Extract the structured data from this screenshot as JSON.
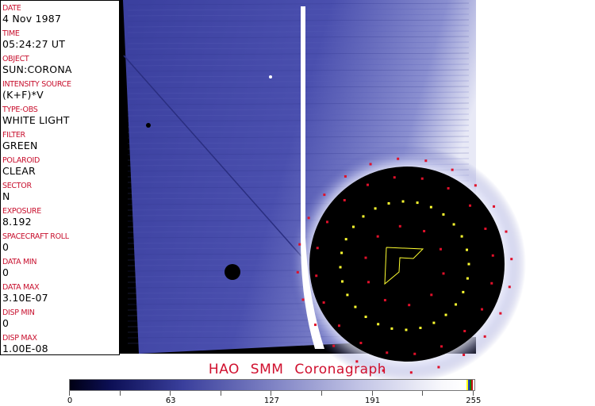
{
  "header_fields": [
    {
      "label": "DATE",
      "value": "4 Nov 1987"
    },
    {
      "label": "TIME",
      "value": "05:24:27 UT"
    },
    {
      "label": "OBJECT",
      "value": "SUN:CORONA"
    },
    {
      "label": "INTENSITY SOURCE",
      "value": "(K+F)*V"
    },
    {
      "label": "TYPE-OBS",
      "value": "WHITE LIGHT"
    },
    {
      "label": "FILTER",
      "value": "GREEN"
    },
    {
      "label": "POLAROID",
      "value": "CLEAR"
    },
    {
      "label": "SECTOR",
      "value": "N"
    },
    {
      "label": "EXPOSURE",
      "value": "8.192"
    },
    {
      "label": "SPACECRAFT ROLL",
      "value": "0"
    },
    {
      "label": "DATA MIN",
      "value": "0"
    },
    {
      "label": "DATA MAX",
      "value": "3.10E-07"
    },
    {
      "label": "DISP MIN",
      "value": "0"
    },
    {
      "label": "DISP MAX",
      "value": "1.00E-08"
    }
  ],
  "title": "HAO  SMM  Coronagraph",
  "colorbar": {
    "ticks": [
      "0",
      "63",
      "127",
      "191",
      "255"
    ],
    "colors": {
      "low": "#000014",
      "mid": "#7e82c4",
      "high": "#ffffff",
      "marker_colors": [
        "#ffff00",
        "#2040c0",
        "#108010",
        "#c01010"
      ]
    }
  },
  "colors": {
    "label": "#c8102e",
    "overlay_red": "#e0102a",
    "overlay_yellow": "#ffff30"
  }
}
